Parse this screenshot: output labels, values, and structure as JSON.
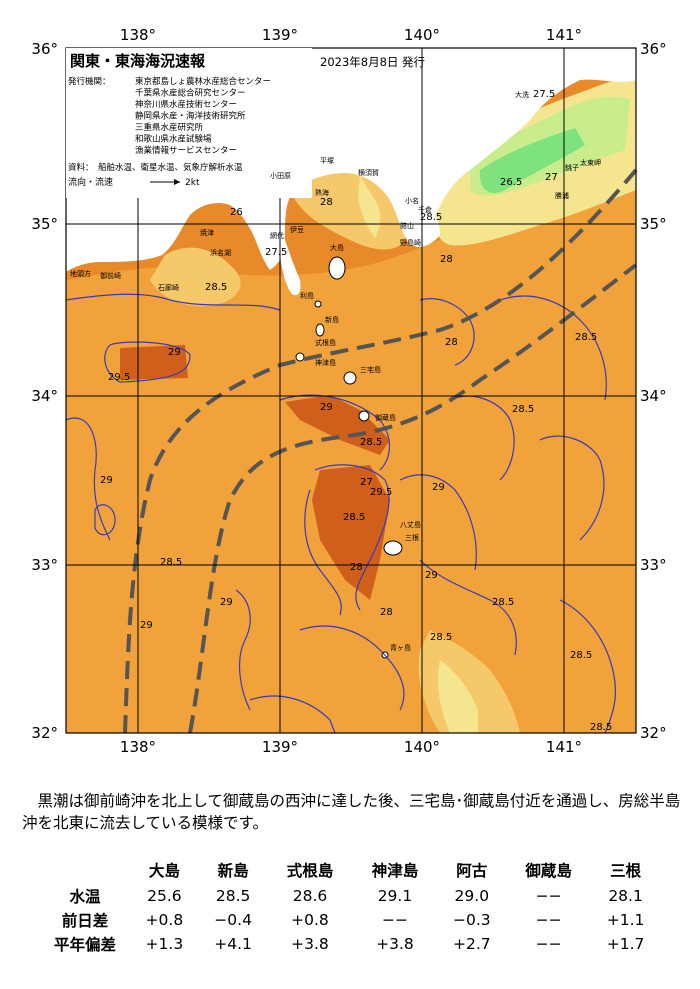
{
  "map": {
    "title": "関東・東海海況速報",
    "issued": "2023年8月8日 発行",
    "issuers_label": "発行機関：",
    "issuers": [
      "東京都島しょ農林水産総合センター",
      "千葉県水産総合研究センター",
      "神奈川県水産技術センター",
      "静岡県水産・海洋技術研究所",
      "三重県水産研究所",
      "和歌山県水産試験場",
      "漁業情報サービスセンター"
    ],
    "sources_label": "資料：",
    "sources": "船舶水温、衛星水温、気象庁解析水温",
    "flow_label": "流向・流速",
    "flow_unit": "2kt",
    "lon_labels": [
      "138°",
      "139°",
      "140°",
      "141°"
    ],
    "lat_labels": [
      "36°",
      "35°",
      "34°",
      "33°",
      "32°"
    ],
    "colors": {
      "land": "#ffffff",
      "sea_base": "#f2a23a",
      "sea_warm": "#e07a1e",
      "sea_hot": "#cf5f1a",
      "sea_cool": "#f5c96a",
      "sea_cooler": "#f6e58f",
      "sea_cold": "#c9ec8c",
      "sea_coldest": "#7ee37f",
      "kuroshio": "#555555",
      "isotherm": "#3a3ab8"
    },
    "place_labels": [
      "大洗",
      "銚子",
      "太東岬",
      "勝浦",
      "小名",
      "平塚",
      "小田原",
      "熱海",
      "網代",
      "石廊崎",
      "御前崎",
      "焼津",
      "浜名湖",
      "伊豆",
      "大島",
      "利島",
      "新島",
      "式根島",
      "神津島",
      "三宅島",
      "御蔵島",
      "八丈島",
      "青ヶ島",
      "三根",
      "野島崎",
      "館山",
      "千倉",
      "横須賀",
      "地頭方"
    ],
    "isotherm_labels": [
      "27.5",
      "26.5",
      "27",
      "28.5",
      "28",
      "26",
      "28.5",
      "29",
      "29.5",
      "28.5",
      "28",
      "29",
      "28.5",
      "29",
      "27",
      "28.5",
      "28",
      "29",
      "28.5",
      "28",
      "28.5",
      "29.5",
      "29",
      "28.5",
      "29",
      "29",
      "28.5",
      "28.5",
      "28",
      "27.5",
      "28.5"
    ]
  },
  "description": "黒潮は御前崎沖を北上して御蔵島の西沖に達した後、三宅島･御蔵島付近を通過し、房総半島沖を北東に流去している模様です。",
  "table": {
    "columns": [
      "",
      "大島",
      "新島",
      "式根島",
      "神津島",
      "阿古",
      "御蔵島",
      "三根"
    ],
    "rows": [
      {
        "label": "水温",
        "values": [
          "25.6",
          "28.5",
          "28.6",
          "29.1",
          "29.0",
          "−−",
          "28.1"
        ]
      },
      {
        "label": "前日差",
        "values": [
          "+0.8",
          "−0.4",
          "+0.8",
          "−−",
          "−0.3",
          "−−",
          "+1.1"
        ]
      },
      {
        "label": "平年偏差",
        "values": [
          "+1.3",
          "+4.1",
          "+3.8",
          "+3.8",
          "+2.7",
          "−−",
          "+1.7"
        ]
      }
    ]
  }
}
